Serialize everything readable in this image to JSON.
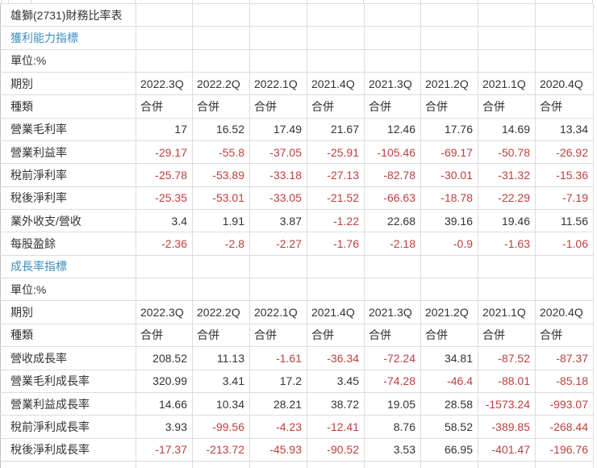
{
  "table": {
    "title": "雄獅(2731)財務比率表",
    "period_label": "期別",
    "type_label": "種類",
    "consolidated": "合併",
    "periods": [
      "2022.3Q",
      "2022.2Q",
      "2022.1Q",
      "2021.4Q",
      "2021.3Q",
      "2021.2Q",
      "2021.1Q",
      "2020.4Q"
    ]
  },
  "sections": [
    {
      "name": "獲利能力指標",
      "unit": "單位:%",
      "rows": [
        {
          "label": "營業毛利率",
          "values": [
            "17",
            "16.52",
            "17.49",
            "21.67",
            "12.46",
            "17.76",
            "14.69",
            "13.34"
          ]
        },
        {
          "label": "營業利益率",
          "values": [
            "-29.17",
            "-55.8",
            "-37.05",
            "-25.91",
            "-105.46",
            "-69.17",
            "-50.78",
            "-26.92"
          ]
        },
        {
          "label": "稅前淨利率",
          "values": [
            "-25.78",
            "-53.89",
            "-33.18",
            "-27.13",
            "-82.78",
            "-30.01",
            "-31.32",
            "-15.36"
          ]
        },
        {
          "label": "稅後淨利率",
          "values": [
            "-25.35",
            "-53.01",
            "-33.05",
            "-21.52",
            "-66.63",
            "-18.78",
            "-22.29",
            "-7.19"
          ]
        },
        {
          "label": "業外收支/營收",
          "values": [
            "3.4",
            "1.91",
            "3.87",
            "-1.22",
            "22.68",
            "39.16",
            "19.46",
            "11.56"
          ]
        },
        {
          "label": "每股盈餘",
          "values": [
            "-2.36",
            "-2.8",
            "-2.27",
            "-1.76",
            "-2.18",
            "-0.9",
            "-1.63",
            "-1.06"
          ]
        }
      ]
    },
    {
      "name": "成長率指標",
      "unit": "單位:%",
      "rows": [
        {
          "label": "營收成長率",
          "values": [
            "208.52",
            "11.13",
            "-1.61",
            "-36.34",
            "-72.24",
            "34.81",
            "-87.52",
            "-87.37"
          ]
        },
        {
          "label": "營業毛利成長率",
          "values": [
            "320.99",
            "3.41",
            "17.2",
            "3.45",
            "-74.28",
            "-46.4",
            "-88.01",
            "-85.18"
          ]
        },
        {
          "label": "營業利益成長率",
          "values": [
            "14.66",
            "10.34",
            "28.21",
            "38.72",
            "19.05",
            "28.58",
            "-1573.24",
            "-993.07"
          ]
        },
        {
          "label": "稅前淨利成長率",
          "values": [
            "3.93",
            "-99.56",
            "-4.23",
            "-12.41",
            "8.76",
            "58.52",
            "-389.85",
            "-268.44"
          ]
        },
        {
          "label": "稅後淨利成長率",
          "values": [
            "-17.37",
            "-213.72",
            "-45.93",
            "-90.52",
            "3.53",
            "66.95",
            "-401.47",
            "-196.76"
          ]
        }
      ]
    }
  ],
  "colors": {
    "negative_value": "#bf3e3e",
    "positive_value": "#333333",
    "section_link": "#3d8ebf",
    "gridline": "#dcdcdc"
  }
}
